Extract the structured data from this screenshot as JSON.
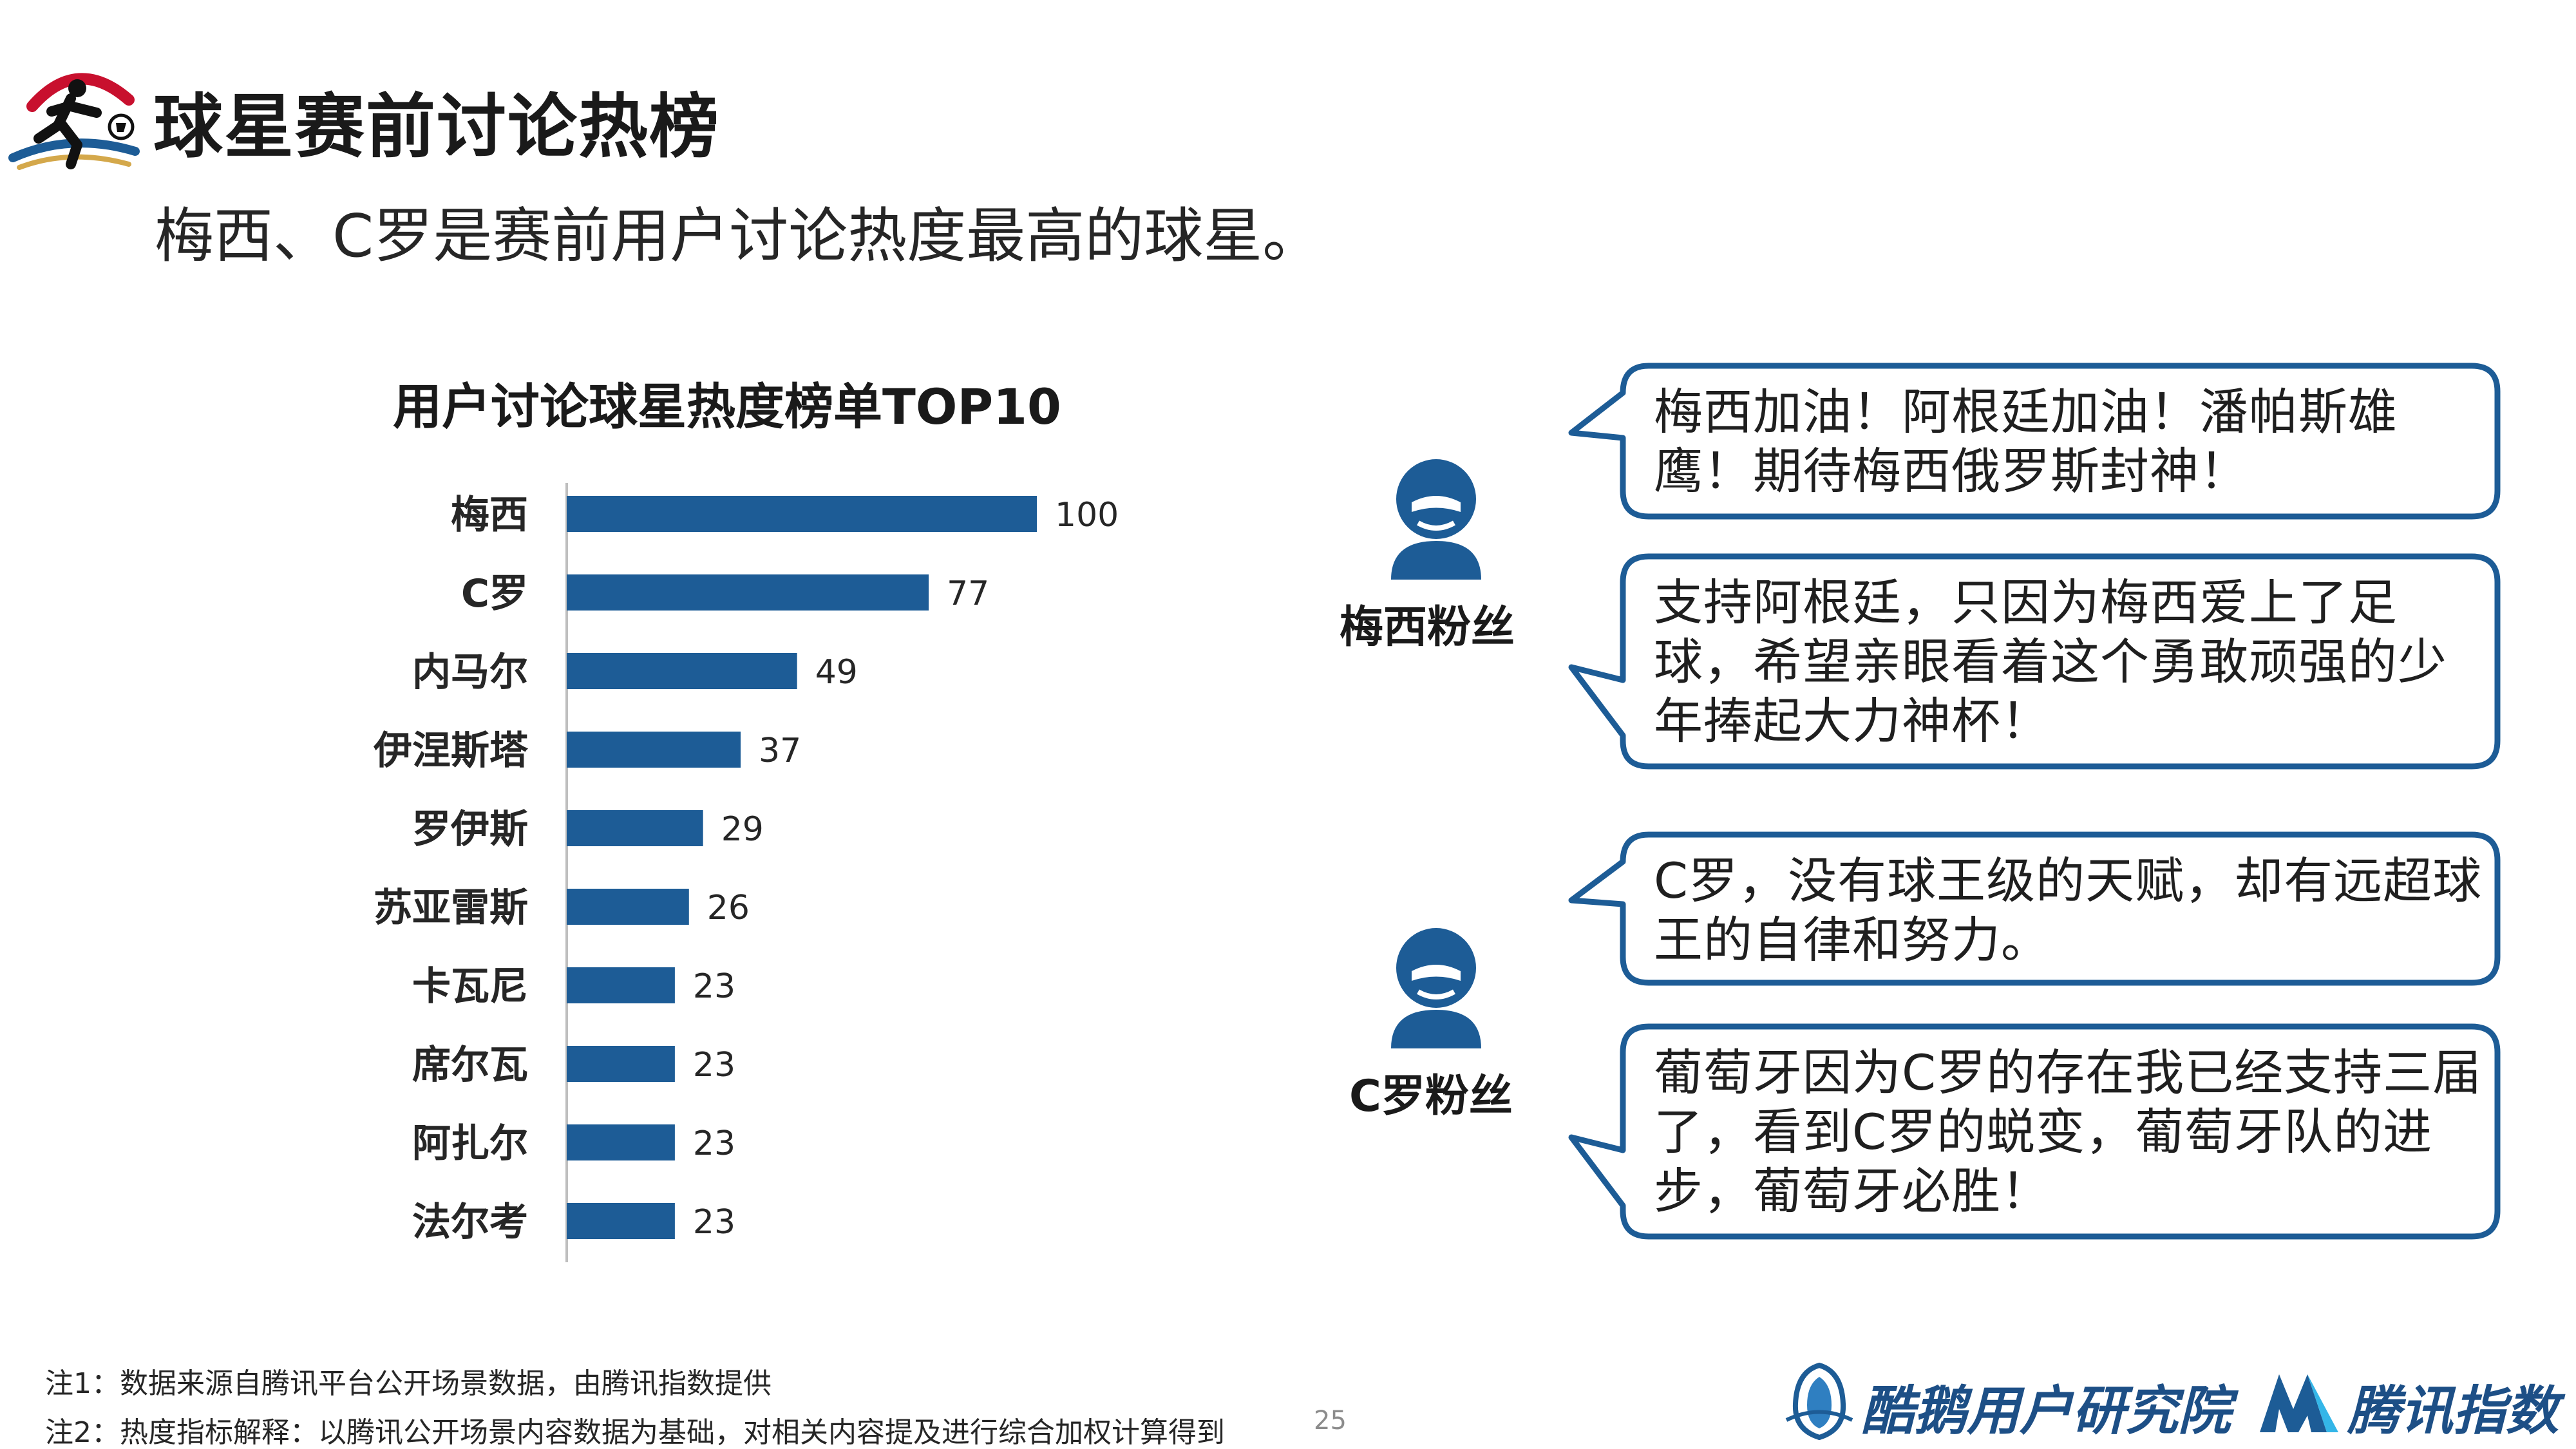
{
  "header": {
    "title": "球星赛前讨论热榜",
    "subtitle": "梅西、C罗是赛前用户讨论热度最高的球星。"
  },
  "colors": {
    "bar": "#1d5c96",
    "accent": "#1d5c96",
    "bubble_border": "#1d5c96",
    "axis": "#bfbfbf"
  },
  "chart_data": {
    "type": "bar",
    "orientation": "horizontal",
    "title": "用户讨论球星热度榜单TOP10",
    "categories": [
      "梅西",
      "C罗",
      "内马尔",
      "伊涅斯塔",
      "罗伊斯",
      "苏亚雷斯",
      "卡瓦尼",
      "席尔瓦",
      "阿扎尔",
      "法尔考"
    ],
    "values": [
      100,
      77,
      49,
      37,
      29,
      26,
      23,
      23,
      23,
      23
    ],
    "data_labels": [
      "100",
      "77",
      "49",
      "37",
      "29",
      "26",
      "23",
      "23",
      "23",
      "23"
    ],
    "xlim": [
      0,
      100
    ],
    "grid": false,
    "legend": "none"
  },
  "fans": [
    {
      "label": "梅西粉丝",
      "icon": "user-silhouette-icon"
    },
    {
      "label": "C罗粉丝",
      "icon": "user-silhouette-icon"
    }
  ],
  "bubbles": [
    {
      "lines": [
        "梅西加油！阿根廷加油！潘帕斯雄",
        "鹰！期待梅西俄罗斯封神！"
      ]
    },
    {
      "lines": [
        "支持阿根廷，只因为梅西爱上了足",
        "球，希望亲眼看着这个勇敢顽强的少",
        "年捧起大力神杯！"
      ]
    },
    {
      "lines": [
        "C罗，没有球王级的天赋，却有远超球",
        "王的自律和努力。"
      ]
    },
    {
      "lines": [
        "葡萄牙因为C罗的存在我已经支持三届",
        "了，看到C罗的蜕变，葡萄牙队的进",
        "步，葡萄牙必胜！"
      ]
    }
  ],
  "footer": {
    "note1": "注1：数据来源自腾讯平台公开场景数据，由腾讯指数提供",
    "note2": "注2：热度指标解释：以腾讯公开场景内容数据为基础，对相关内容提及进行综合加权计算得到",
    "page_number": "25",
    "brand1": "酷鹅用户研究院",
    "brand2": "腾讯指数"
  }
}
